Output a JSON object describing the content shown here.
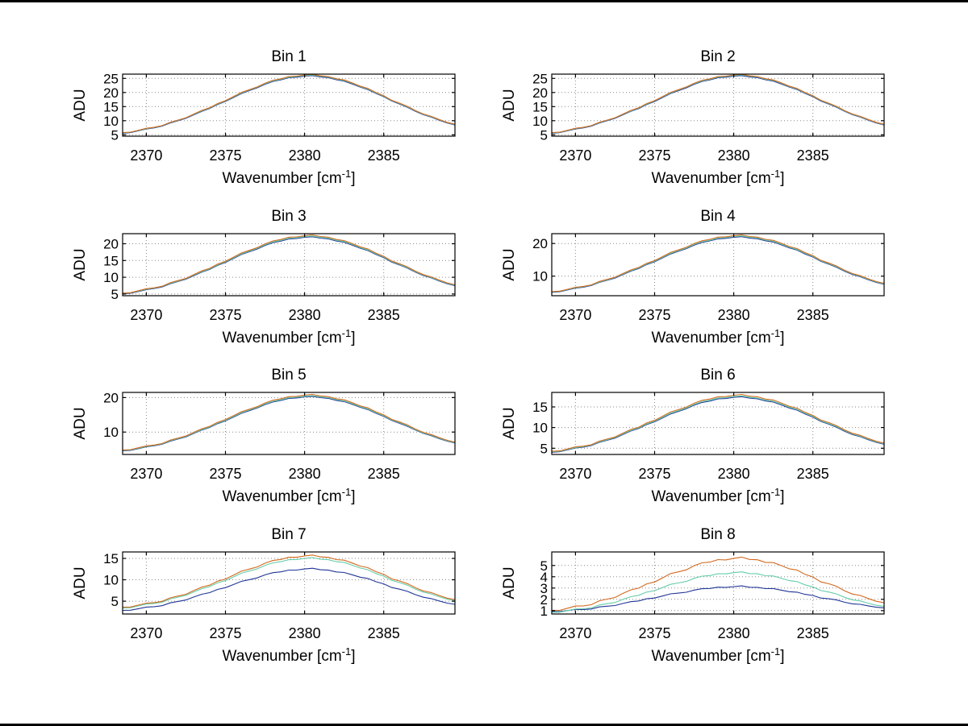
{
  "labels": {
    "ylabel": "ADU",
    "xlabel_pre": "Wavenumber [cm",
    "xlabel_sup": "-1",
    "xlabel_post": "]"
  },
  "chart_data": {
    "type": "line",
    "layout": {
      "rows": 4,
      "cols": 2
    },
    "grid": true,
    "x_axis": {
      "range": [
        2368.5,
        2389.5
      ],
      "start": 2368.5,
      "step": 0.5,
      "points": 43,
      "ticks": [
        2370,
        2375,
        2380,
        2385
      ]
    },
    "colors": {
      "blue": "#1f3596",
      "green": "#66cdaa",
      "orange": "#d2691e"
    },
    "base_shape": [
      0.076,
      0.094,
      0.116,
      0.141,
      0.169,
      0.202,
      0.239,
      0.28,
      0.325,
      0.373,
      0.425,
      0.48,
      0.537,
      0.595,
      0.653,
      0.71,
      0.766,
      0.818,
      0.865,
      0.907,
      0.942,
      0.969,
      0.988,
      0.998,
      0.999,
      0.991,
      0.974,
      0.948,
      0.914,
      0.874,
      0.828,
      0.776,
      0.722,
      0.665,
      0.607,
      0.548,
      0.491,
      0.436,
      0.383,
      0.334,
      0.288,
      0.247,
      0.209
    ],
    "noise": [
      0.2,
      -0.5,
      0.1,
      0.6,
      -0.3,
      -0.8,
      0.4,
      0.0,
      -0.6,
      0.3,
      0.7,
      -0.2,
      0.5,
      -0.4,
      0.1,
      0.8,
      -0.1,
      -0.7,
      0.3,
      0.6,
      -0.2,
      0.4,
      -0.5,
      0.2,
      0.9,
      -0.3,
      0.1,
      -0.6,
      0.5,
      0.0,
      -0.4,
      0.7,
      -0.1,
      0.3,
      -0.8,
      0.2,
      0.6,
      -0.3,
      -0.5,
      0.4,
      0.1,
      -0.2,
      0.3
    ],
    "subplots": [
      {
        "title": "Bin 1",
        "ylim": [
          4.5,
          26.5
        ],
        "yticks": [
          5,
          10,
          15,
          20,
          25
        ],
        "series": [
          {
            "name": "blue",
            "color_key": "blue",
            "offset": 3.8,
            "scale": 22.0,
            "noise_amp": 0.22
          },
          {
            "name": "green",
            "color_key": "green",
            "offset": 3.92,
            "scale": 22.1,
            "noise_amp": 0.22
          },
          {
            "name": "orange",
            "color_key": "orange",
            "offset": 4.0,
            "scale": 22.2,
            "noise_amp": 0.3
          }
        ]
      },
      {
        "title": "Bin 2",
        "ylim": [
          4.5,
          26.5
        ],
        "yticks": [
          5,
          10,
          15,
          20,
          25
        ],
        "series": [
          {
            "name": "blue",
            "color_key": "blue",
            "offset": 3.8,
            "scale": 22.0,
            "noise_amp": 0.24
          },
          {
            "name": "green",
            "color_key": "green",
            "offset": 3.92,
            "scale": 22.1,
            "noise_amp": 0.24
          },
          {
            "name": "orange",
            "color_key": "orange",
            "offset": 4.0,
            "scale": 22.2,
            "noise_amp": 0.3
          }
        ]
      },
      {
        "title": "Bin 3",
        "ylim": [
          4.5,
          23.0
        ],
        "yticks": [
          5,
          10,
          15,
          20
        ],
        "series": [
          {
            "name": "blue",
            "color_key": "blue",
            "offset": 3.6,
            "scale": 18.3,
            "noise_amp": 0.22
          },
          {
            "name": "green",
            "color_key": "green",
            "offset": 3.72,
            "scale": 18.4,
            "noise_amp": 0.22
          },
          {
            "name": "orange",
            "color_key": "orange",
            "offset": 3.8,
            "scale": 18.6,
            "noise_amp": 0.28
          }
        ]
      },
      {
        "title": "Bin 4",
        "ylim": [
          4.0,
          23.0
        ],
        "yticks": [
          10,
          20
        ],
        "series": [
          {
            "name": "blue",
            "color_key": "blue",
            "offset": 3.6,
            "scale": 18.3,
            "noise_amp": 0.22
          },
          {
            "name": "green",
            "color_key": "green",
            "offset": 3.72,
            "scale": 18.4,
            "noise_amp": 0.22
          },
          {
            "name": "orange",
            "color_key": "orange",
            "offset": 3.8,
            "scale": 18.6,
            "noise_amp": 0.28
          }
        ]
      },
      {
        "title": "Bin 5",
        "ylim": [
          3.5,
          21.5
        ],
        "yticks": [
          10,
          20
        ],
        "series": [
          {
            "name": "blue",
            "color_key": "blue",
            "offset": 3.2,
            "scale": 17.0,
            "noise_amp": 0.2
          },
          {
            "name": "green",
            "color_key": "green",
            "offset": 3.3,
            "scale": 17.1,
            "noise_amp": 0.2
          },
          {
            "name": "orange",
            "color_key": "orange",
            "offset": 3.4,
            "scale": 17.3,
            "noise_amp": 0.26
          }
        ]
      },
      {
        "title": "Bin 6",
        "ylim": [
          3.5,
          18.5
        ],
        "yticks": [
          5,
          10,
          15
        ],
        "series": [
          {
            "name": "blue",
            "color_key": "blue",
            "offset": 2.9,
            "scale": 14.4,
            "noise_amp": 0.2
          },
          {
            "name": "green",
            "color_key": "green",
            "offset": 3.0,
            "scale": 14.5,
            "noise_amp": 0.2
          },
          {
            "name": "orange",
            "color_key": "orange",
            "offset": 3.1,
            "scale": 14.7,
            "noise_amp": 0.26
          }
        ]
      },
      {
        "title": "Bin 7",
        "ylim": [
          2.0,
          16.5
        ],
        "yticks": [
          5,
          10,
          15
        ],
        "series": [
          {
            "name": "blue",
            "color_key": "blue",
            "offset": 2.0,
            "scale": 10.5,
            "noise_amp": 0.22
          },
          {
            "name": "green",
            "color_key": "green",
            "offset": 2.4,
            "scale": 12.6,
            "noise_amp": 0.22
          },
          {
            "name": "orange",
            "color_key": "orange",
            "offset": 2.55,
            "scale": 13.0,
            "noise_amp": 0.28
          }
        ]
      },
      {
        "title": "Bin 8",
        "ylim": [
          0.7,
          6.2
        ],
        "yticks": [
          1,
          2,
          3,
          4,
          5
        ],
        "series": [
          {
            "name": "blue",
            "color_key": "blue",
            "offset": 0.72,
            "scale": 2.4,
            "noise_amp": 0.08
          },
          {
            "name": "green",
            "color_key": "green",
            "offset": 0.55,
            "scale": 3.8,
            "noise_amp": 0.1
          },
          {
            "name": "orange",
            "color_key": "orange",
            "offset": 0.62,
            "scale": 5.0,
            "noise_amp": 0.14
          }
        ]
      }
    ]
  }
}
